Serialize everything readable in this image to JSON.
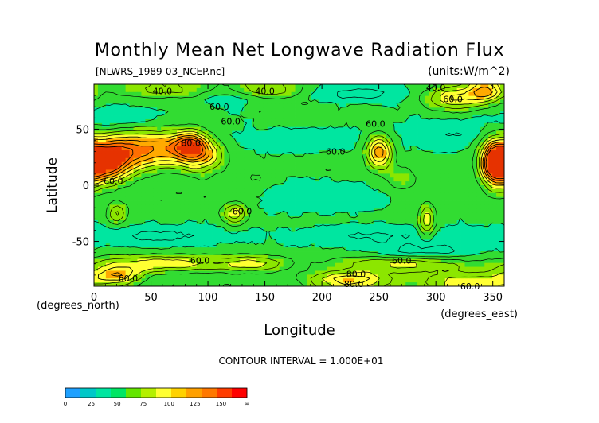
{
  "chart_data": {
    "type": "heatmap",
    "title": "Monthly Mean Net Longwave Radiation Flux",
    "source_file": "[NLWRS_1989-03_NCEP.nc]",
    "units": "(units:W/m^2)",
    "xlabel": "Longitude",
    "ylabel": "Latitude",
    "x_unit_label": "(degrees_east)",
    "y_unit_label": "(degrees_north)",
    "xlim": [
      0,
      360
    ],
    "ylim": [
      -90,
      90
    ],
    "x_ticks": [
      0,
      50,
      100,
      150,
      200,
      250,
      300,
      350
    ],
    "x_tick_labels": [
      "0",
      "50",
      "100",
      "150",
      "200",
      "250",
      "300",
      "350"
    ],
    "y_ticks": [
      50,
      0,
      -50
    ],
    "y_tick_labels": [
      "50",
      "0",
      "-50"
    ],
    "contour_interval_text": "CONTOUR INTERVAL = 1.000E+01",
    "contour_labels": [
      {
        "text": "40.0",
        "lon": 60,
        "lat": 84
      },
      {
        "text": "40.0",
        "lon": 300,
        "lat": 87
      },
      {
        "text": "40.0",
        "lon": 150,
        "lat": 84
      },
      {
        "text": "60.0",
        "lon": 120,
        "lat": 57
      },
      {
        "text": "60.0",
        "lon": 110,
        "lat": 70
      },
      {
        "text": "60.0",
        "lon": 315,
        "lat": 77
      },
      {
        "text": "60.0",
        "lon": 247,
        "lat": 55
      },
      {
        "text": "60.0",
        "lon": 212,
        "lat": 30
      },
      {
        "text": "80.0",
        "lon": 85,
        "lat": 38
      },
      {
        "text": "60.0",
        "lon": 17,
        "lat": 4
      },
      {
        "text": "60.0",
        "lon": 130,
        "lat": -23
      },
      {
        "text": "60.0",
        "lon": 93,
        "lat": -67
      },
      {
        "text": "60.0",
        "lon": 270,
        "lat": -67
      },
      {
        "text": "60.0",
        "lon": 30,
        "lat": -83
      },
      {
        "text": "80.0",
        "lon": 230,
        "lat": -79
      },
      {
        "text": "80.0",
        "lon": 228,
        "lat": -88
      },
      {
        "text": "60.0",
        "lon": 330,
        "lat": -90
      }
    ],
    "colorbar": {
      "tick_labels": [
        "0",
        "25",
        "50",
        "75",
        "100",
        "125",
        "150",
        "∞"
      ],
      "colors": [
        "#1ea0ff",
        "#00c8c8",
        "#00e6a0",
        "#00e664",
        "#64e600",
        "#b4f000",
        "#ffff32",
        "#ffd200",
        "#ffa000",
        "#ff7800",
        "#ff3c00",
        "#ff0000"
      ]
    },
    "field_levels": [
      "#00c8c8",
      "#00e6a0",
      "#32dc32",
      "#8ce600",
      "#ffff32",
      "#ffaa00",
      "#ff6e00",
      "#e63200"
    ],
    "features": [
      {
        "lon": 8,
        "lat": 20,
        "value": 140,
        "sx": 14,
        "sy": 12
      },
      {
        "lon": 30,
        "lat": 30,
        "value": 115,
        "sx": 18,
        "sy": 12
      },
      {
        "lon": 62,
        "lat": 33,
        "value": 105,
        "sx": 16,
        "sy": 10
      },
      {
        "lon": 85,
        "lat": 35,
        "value": 130,
        "sx": 10,
        "sy": 8
      },
      {
        "lon": 95,
        "lat": 25,
        "value": 100,
        "sx": 14,
        "sy": 10
      },
      {
        "lon": 250,
        "lat": 30,
        "value": 125,
        "sx": 7,
        "sy": 10
      },
      {
        "lon": 352,
        "lat": 20,
        "value": 140,
        "sx": 8,
        "sy": 14
      },
      {
        "lon": 20,
        "lat": -25,
        "value": 100,
        "sx": 5,
        "sy": 6
      },
      {
        "lon": 123,
        "lat": -25,
        "value": 105,
        "sx": 7,
        "sy": 6
      },
      {
        "lon": 292,
        "lat": -32,
        "value": 110,
        "sx": 4,
        "sy": 10
      },
      {
        "lon": 270,
        "lat": 5,
        "value": 80,
        "sx": 10,
        "sy": 8
      },
      {
        "lon": 140,
        "lat": 5,
        "value": 72,
        "sx": 12,
        "sy": 8
      },
      {
        "lon": 320,
        "lat": 78,
        "value": 105,
        "sx": 20,
        "sy": 7
      },
      {
        "lon": 345,
        "lat": 84,
        "value": 110,
        "sx": 10,
        "sy": 5
      },
      {
        "lon": 150,
        "lat": 85,
        "value": 95,
        "sx": 25,
        "sy": 4
      },
      {
        "lon": 60,
        "lat": 85,
        "value": 88,
        "sx": 35,
        "sy": 4
      },
      {
        "lon": 120,
        "lat": 80,
        "value": 45,
        "sx": 15,
        "sy": 5
      },
      {
        "lon": 230,
        "lat": 82,
        "value": 40,
        "sx": 30,
        "sy": 4
      },
      {
        "lon": 20,
        "lat": 60,
        "value": 48,
        "sx": 25,
        "sy": 6
      },
      {
        "lon": 180,
        "lat": 40,
        "value": 50,
        "sx": 40,
        "sy": 6
      },
      {
        "lon": 310,
        "lat": 45,
        "value": 50,
        "sx": 30,
        "sy": 8
      },
      {
        "lon": 200,
        "lat": -10,
        "value": 50,
        "sx": 40,
        "sy": 8
      },
      {
        "lon": 60,
        "lat": -45,
        "value": 45,
        "sx": 40,
        "sy": 5
      },
      {
        "lon": 250,
        "lat": -45,
        "value": 46,
        "sx": 50,
        "sy": 5
      },
      {
        "lon": 60,
        "lat": -70,
        "value": 110,
        "sx": 40,
        "sy": 4
      },
      {
        "lon": 140,
        "lat": -70,
        "value": 100,
        "sx": 20,
        "sy": 4
      },
      {
        "lon": 270,
        "lat": -70,
        "value": 105,
        "sx": 40,
        "sy": 4
      },
      {
        "lon": 20,
        "lat": -80,
        "value": 115,
        "sx": 15,
        "sy": 4
      },
      {
        "lon": 225,
        "lat": -84,
        "value": 120,
        "sx": 25,
        "sy": 4
      },
      {
        "lon": 330,
        "lat": -86,
        "value": 105,
        "sx": 30,
        "sy": 5
      },
      {
        "lon": 290,
        "lat": -60,
        "value": 40,
        "sx": 30,
        "sy": 5
      }
    ],
    "background_value": 62
  }
}
